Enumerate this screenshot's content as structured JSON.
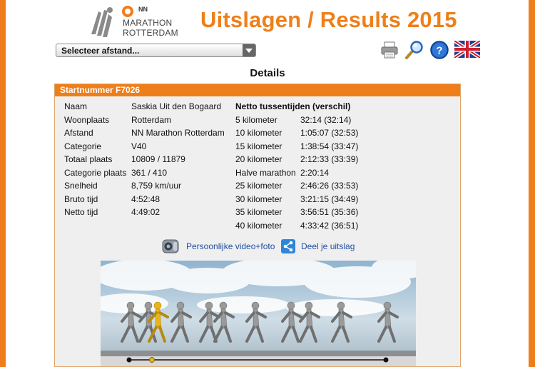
{
  "header": {
    "logo_brand": "NN",
    "logo_line1": "MARATHON",
    "logo_line2": "ROTTERDAM",
    "title": "Uitslagen / Results 2015",
    "accent_color": "#ef7f1a"
  },
  "distance_select": {
    "value": "Selecteer afstand..."
  },
  "toolbar": {
    "icons": [
      "printer-icon",
      "search-icon",
      "help-icon",
      "uk-flag-icon"
    ]
  },
  "page_heading": "Details",
  "panel": {
    "header": "Startnummer F7026",
    "info": [
      {
        "label": "Naam",
        "value": "Saskia Uit den Bogaard"
      },
      {
        "label": "Woonplaats",
        "value": "Rotterdam"
      },
      {
        "label": "Afstand",
        "value": "NN Marathon Rotterdam"
      },
      {
        "label": "Categorie",
        "value": "V40"
      },
      {
        "label": "Totaal plaats",
        "value": "10809 / 11879"
      },
      {
        "label": "Categorie plaats",
        "value": "361 / 410"
      },
      {
        "label": "Snelheid",
        "value": "8,759 km/uur"
      },
      {
        "label": "Bruto tijd",
        "value": "4:52:48"
      },
      {
        "label": "Netto tijd",
        "value": "4:49:02"
      }
    ],
    "splits_heading": "Netto tussentijden (verschil)",
    "splits": [
      {
        "label": "5 kilometer",
        "value": "32:14 (32:14)"
      },
      {
        "label": "10 kilometer",
        "value": "1:05:07 (32:53)"
      },
      {
        "label": "15 kilometer",
        "value": "1:38:54 (33:47)"
      },
      {
        "label": "20 kilometer",
        "value": "2:12:33 (33:39)"
      },
      {
        "label": "Halve marathon",
        "value": "2:20:14"
      },
      {
        "label": "25 kilometer",
        "value": "2:46:26 (33:53)"
      },
      {
        "label": "30 kilometer",
        "value": "3:21:15 (34:49)"
      },
      {
        "label": "35 kilometer",
        "value": "3:56:51 (35:36)"
      },
      {
        "label": "40 kilometer",
        "value": "4:33:42 (36:51)"
      }
    ],
    "links": {
      "video": "Persoonlijke video+foto",
      "share": "Deel je uitslag"
    }
  },
  "runner_visualization": {
    "highlight_color": "#e7b41c",
    "runner_color": "#9a9a9a"
  }
}
